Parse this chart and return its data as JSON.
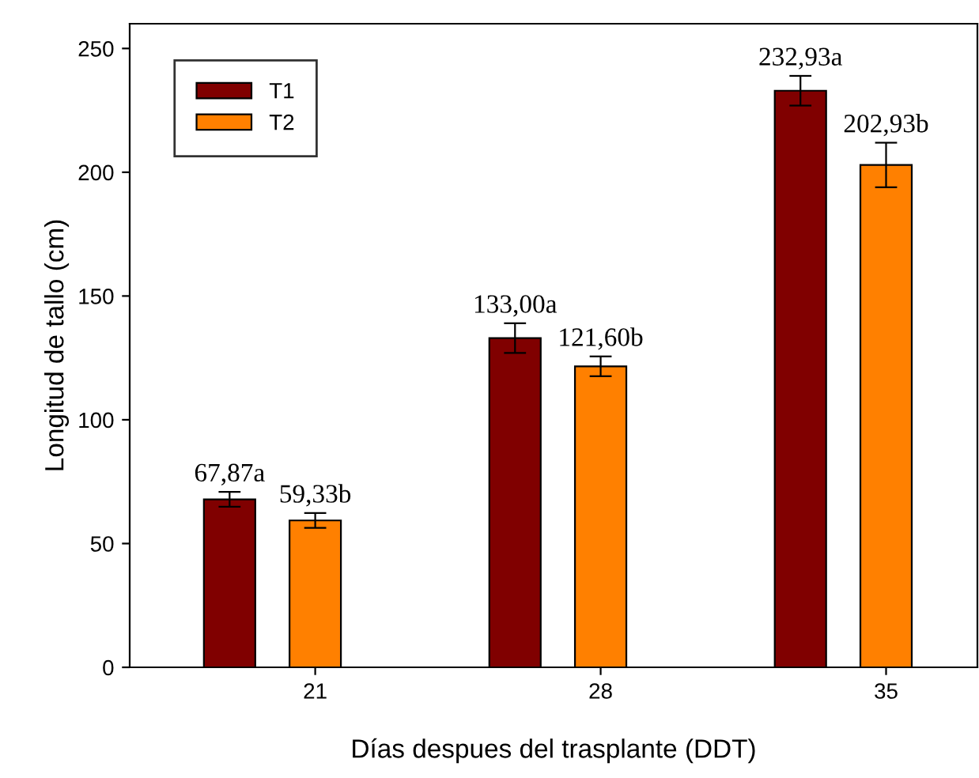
{
  "chart_data": {
    "type": "bar",
    "xlabel": "Días despues del trasplante (DDT)",
    "ylabel": "Longitud de tallo (cm)",
    "categories": [
      "21",
      "28",
      "35"
    ],
    "series": [
      {
        "name": "T1",
        "color": "#800000",
        "values": [
          67.87,
          133.0,
          232.93
        ],
        "errors": [
          3,
          6,
          6
        ],
        "value_labels": [
          "67,87a",
          "133,00a",
          "232,93a"
        ]
      },
      {
        "name": "T2",
        "color": "#ff8000",
        "values": [
          59.33,
          121.6,
          202.93
        ],
        "errors": [
          3,
          4,
          9
        ],
        "value_labels": [
          "59,33b",
          "121,60b",
          "202,93b"
        ]
      }
    ],
    "ylim": [
      0,
      260
    ],
    "yticks": [
      0,
      50,
      100,
      150,
      200,
      250
    ],
    "legend": "top left",
    "grid": false
  }
}
